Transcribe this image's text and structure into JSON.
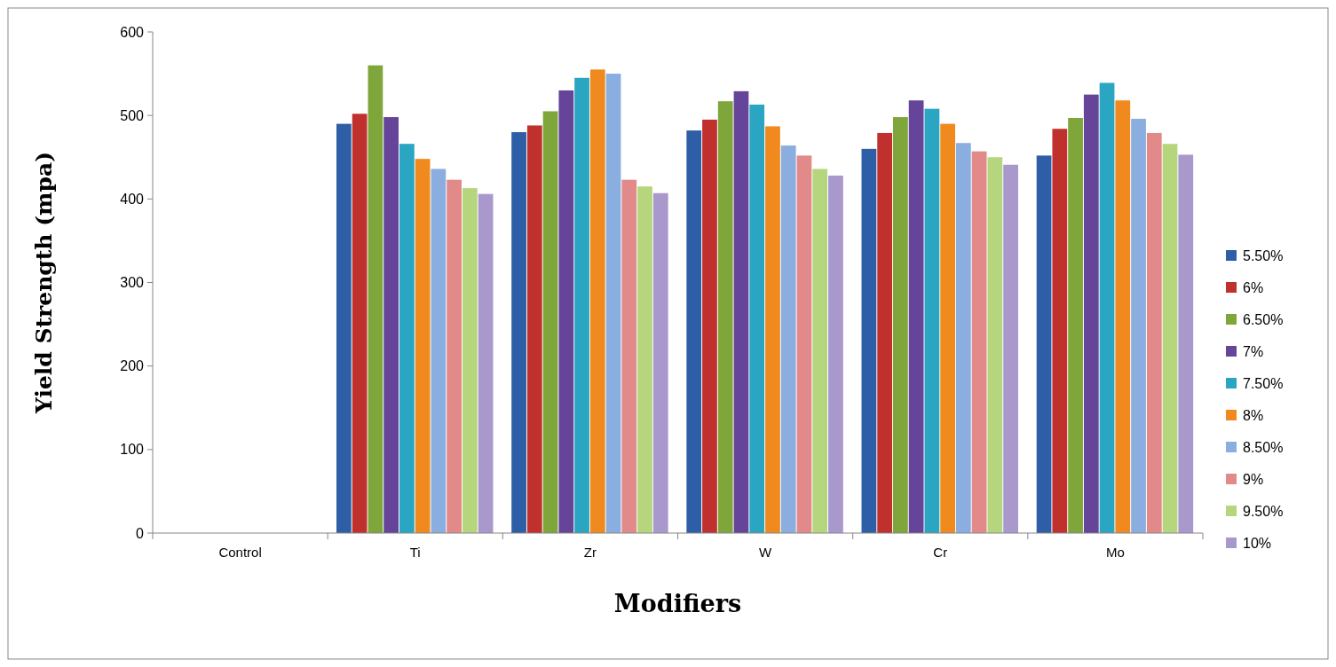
{
  "chart_data": {
    "type": "bar",
    "xlabel": "Modifiers",
    "ylabel": "Yield Strength (mpa)",
    "categories": [
      "Control",
      "Ti",
      "Zr",
      "W",
      "Cr",
      "Mo"
    ],
    "ylim": [
      0,
      600
    ],
    "yticks": [
      0,
      100,
      200,
      300,
      400,
      500,
      600
    ],
    "grid": false,
    "legend": "right",
    "series": [
      {
        "name": "5.50%",
        "color": "#2e5fa6",
        "values": [
          null,
          490,
          480,
          482,
          460,
          452
        ]
      },
      {
        "name": "6%",
        "color": "#c0312e",
        "values": [
          null,
          502,
          488,
          495,
          479,
          484
        ]
      },
      {
        "name": "6.50%",
        "color": "#7ea63a",
        "values": [
          null,
          560,
          505,
          517,
          498,
          497
        ]
      },
      {
        "name": "7%",
        "color": "#65449a",
        "values": [
          null,
          498,
          530,
          529,
          518,
          525
        ]
      },
      {
        "name": "7.50%",
        "color": "#2aa5c2",
        "values": [
          null,
          466,
          545,
          513,
          508,
          539
        ]
      },
      {
        "name": "8%",
        "color": "#f08a1e",
        "values": [
          null,
          448,
          555,
          487,
          490,
          518
        ]
      },
      {
        "name": "8.50%",
        "color": "#8aaee0",
        "values": [
          null,
          436,
          550,
          464,
          467,
          496
        ]
      },
      {
        "name": "9%",
        "color": "#e28a8a",
        "values": [
          null,
          423,
          423,
          452,
          457,
          479
        ]
      },
      {
        "name": "9.50%",
        "color": "#b6d67e",
        "values": [
          null,
          413,
          415,
          436,
          450,
          466
        ]
      },
      {
        "name": "10%",
        "color": "#a898cc",
        "values": [
          null,
          406,
          407,
          428,
          441,
          453
        ]
      }
    ]
  }
}
